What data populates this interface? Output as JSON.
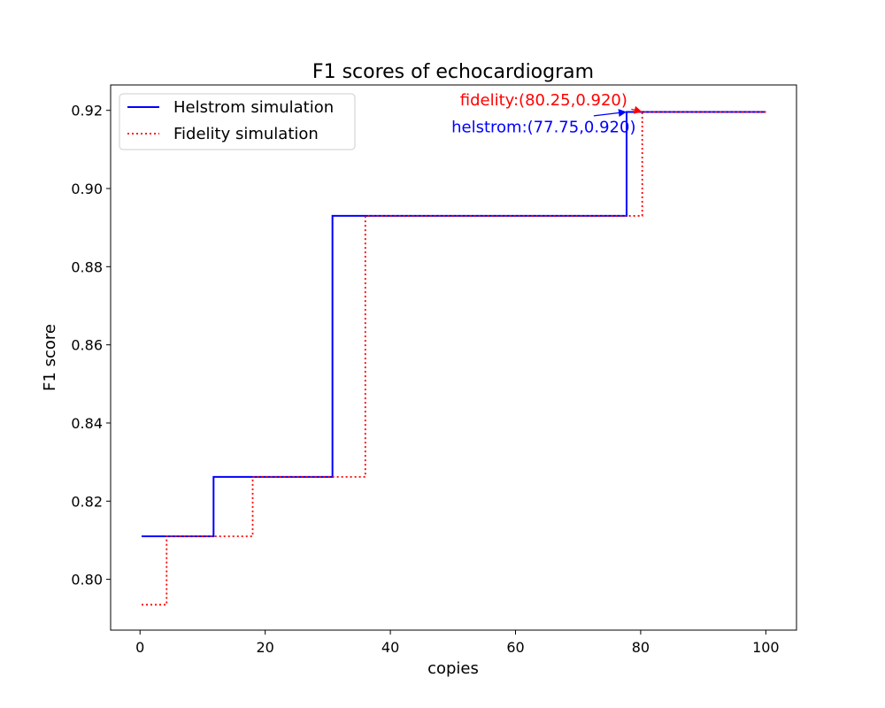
{
  "chart_data": {
    "type": "line",
    "title": "F1 scores of echocardiogram",
    "xlabel": "copies",
    "ylabel": "F1 score",
    "xlim": [
      -4.7,
      104.9
    ],
    "ylim": [
      0.787,
      0.9265
    ],
    "xticks": [
      0,
      20,
      40,
      60,
      80,
      100
    ],
    "xtick_labels": [
      "0",
      "20",
      "40",
      "60",
      "80",
      "100"
    ],
    "yticks": [
      0.8,
      0.82,
      0.84,
      0.86,
      0.88,
      0.9,
      0.92
    ],
    "ytick_labels": [
      "0.80",
      "0.82",
      "0.84",
      "0.86",
      "0.88",
      "0.90",
      "0.92"
    ],
    "grid": false,
    "legend_position": "top-left",
    "series": [
      {
        "name": "Helstrom simulation",
        "color": "#0000ff",
        "style": "solid",
        "step": true,
        "x": [
          0.25,
          11.75,
          11.75,
          30.75,
          30.75,
          77.75,
          77.75,
          100
        ],
        "y": [
          0.811,
          0.811,
          0.8262,
          0.8262,
          0.893,
          0.893,
          0.9196,
          0.9196
        ]
      },
      {
        "name": "Fidelity simulation",
        "color": "#ff0000",
        "style": "dotted",
        "step": true,
        "x": [
          0.25,
          4.25,
          4.25,
          18.0,
          18.0,
          36.0,
          36.0,
          80.25,
          80.25,
          100
        ],
        "y": [
          0.7935,
          0.7935,
          0.811,
          0.811,
          0.8262,
          0.8262,
          0.893,
          0.893,
          0.9196,
          0.9196
        ]
      }
    ],
    "annotations": [
      {
        "text": "helstrom:(77.75,0.920)",
        "color": "#0000ff",
        "point": [
          77.75,
          0.9196
        ],
        "text_pos": [
          64.5,
          0.9144
        ],
        "arrow_start": [
          72.5,
          0.9186
        ]
      },
      {
        "text": "fidelity:(80.25,0.920)",
        "color": "#ff0000",
        "point": [
          80.25,
          0.9196
        ],
        "text_pos": [
          64.5,
          0.9213
        ],
        "arrow_start": [
          78.5,
          0.9203
        ]
      }
    ]
  }
}
